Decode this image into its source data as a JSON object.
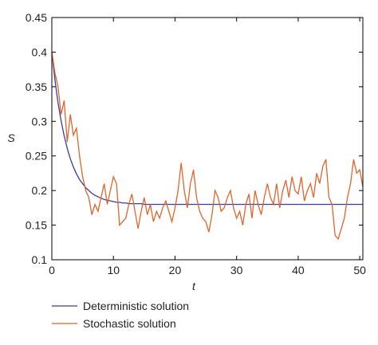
{
  "chart_data": {
    "type": "line",
    "xlabel": "t",
    "ylabel": "S",
    "xlim": [
      0,
      50.5
    ],
    "ylim": [
      0.1,
      0.45
    ],
    "xticks": [
      0,
      10,
      20,
      30,
      40,
      50
    ],
    "yticks": [
      0.1,
      0.15,
      0.2,
      0.25,
      0.3,
      0.35,
      0.4,
      0.45
    ],
    "x": [
      0,
      0.5,
      1,
      1.5,
      2,
      2.5,
      3,
      3.5,
      4,
      4.5,
      5,
      5.5,
      6,
      6.5,
      7,
      7.5,
      8,
      8.5,
      9,
      9.5,
      10,
      10.5,
      11,
      11.5,
      12,
      12.5,
      13,
      13.5,
      14,
      14.5,
      15,
      15.5,
      16,
      16.5,
      17,
      17.5,
      18,
      18.5,
      19,
      19.5,
      20,
      20.5,
      21,
      21.5,
      22,
      22.5,
      23,
      23.5,
      24,
      24.5,
      25,
      25.5,
      26,
      26.5,
      27,
      27.5,
      28,
      28.5,
      29,
      29.5,
      30,
      30.5,
      31,
      31.5,
      32,
      32.5,
      33,
      33.5,
      34,
      34.5,
      35,
      35.5,
      36,
      36.5,
      37,
      37.5,
      38,
      38.5,
      39,
      39.5,
      40,
      40.5,
      41,
      41.5,
      42,
      42.5,
      43,
      43.5,
      44,
      44.5,
      45,
      45.5,
      46,
      46.5,
      47,
      47.5,
      48,
      48.5,
      49,
      49.5,
      50,
      50.5
    ],
    "series": [
      {
        "name": "Deterministic solution",
        "color": "#3b3b9c",
        "values": [
          0.4,
          0.36,
          0.327,
          0.301,
          0.279,
          0.261,
          0.246,
          0.234,
          0.224,
          0.216,
          0.21,
          0.204,
          0.2,
          0.196,
          0.193,
          0.191,
          0.189,
          0.187,
          0.186,
          0.185,
          0.184,
          0.183,
          0.183,
          0.182,
          0.182,
          0.181,
          0.181,
          0.181,
          0.181,
          0.181,
          0.18,
          0.18,
          0.18,
          0.18,
          0.18,
          0.18,
          0.18,
          0.18,
          0.18,
          0.18,
          0.18,
          0.18,
          0.18,
          0.18,
          0.18,
          0.18,
          0.18,
          0.18,
          0.18,
          0.18,
          0.18,
          0.18,
          0.18,
          0.18,
          0.18,
          0.18,
          0.18,
          0.18,
          0.18,
          0.18,
          0.18,
          0.18,
          0.18,
          0.18,
          0.18,
          0.18,
          0.18,
          0.18,
          0.18,
          0.18,
          0.18,
          0.18,
          0.18,
          0.18,
          0.18,
          0.18,
          0.18,
          0.18,
          0.18,
          0.18,
          0.18,
          0.18,
          0.18,
          0.18,
          0.18,
          0.18,
          0.18,
          0.18,
          0.18,
          0.18,
          0.18,
          0.18,
          0.18,
          0.18,
          0.18,
          0.18,
          0.18,
          0.18,
          0.18,
          0.18,
          0.18,
          0.18
        ]
      },
      {
        "name": "Stochastic solution",
        "color": "#e0652b",
        "values": [
          0.4,
          0.37,
          0.35,
          0.31,
          0.33,
          0.27,
          0.31,
          0.28,
          0.29,
          0.25,
          0.22,
          0.2,
          0.19,
          0.165,
          0.18,
          0.17,
          0.19,
          0.21,
          0.18,
          0.2,
          0.22,
          0.21,
          0.15,
          0.155,
          0.16,
          0.18,
          0.195,
          0.17,
          0.145,
          0.17,
          0.19,
          0.165,
          0.18,
          0.155,
          0.17,
          0.16,
          0.175,
          0.185,
          0.17,
          0.155,
          0.175,
          0.2,
          0.24,
          0.2,
          0.175,
          0.21,
          0.23,
          0.19,
          0.17,
          0.16,
          0.155,
          0.14,
          0.165,
          0.2,
          0.19,
          0.17,
          0.175,
          0.19,
          0.2,
          0.175,
          0.16,
          0.17,
          0.15,
          0.18,
          0.195,
          0.16,
          0.2,
          0.18,
          0.165,
          0.19,
          0.21,
          0.19,
          0.18,
          0.21,
          0.175,
          0.2,
          0.215,
          0.19,
          0.22,
          0.2,
          0.195,
          0.22,
          0.185,
          0.2,
          0.21,
          0.19,
          0.225,
          0.21,
          0.235,
          0.245,
          0.19,
          0.18,
          0.135,
          0.13,
          0.145,
          0.16,
          0.19,
          0.21,
          0.245,
          0.225,
          0.23,
          0.205
        ]
      }
    ]
  }
}
